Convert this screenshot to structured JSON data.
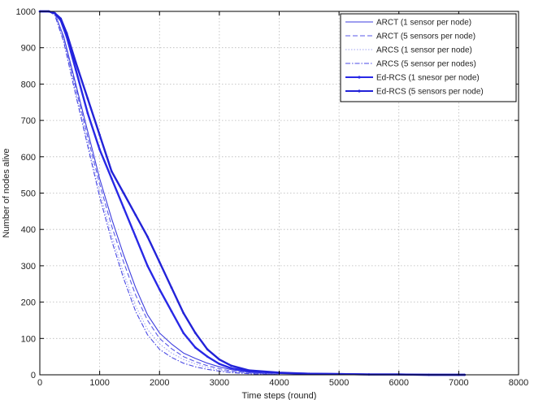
{
  "chart_data": {
    "type": "line",
    "title": "",
    "xlabel": "Time steps (round)",
    "ylabel": "Number of nodes alive",
    "xlim": [
      0,
      8000
    ],
    "ylim": [
      0,
      1000
    ],
    "xticks": [
      "0",
      "1000",
      "2000",
      "3000",
      "4000",
      "5000",
      "6000",
      "7000",
      "8000"
    ],
    "yticks": [
      "0",
      "100",
      "200",
      "300",
      "400",
      "500",
      "600",
      "700",
      "800",
      "900",
      "1000"
    ],
    "grid": true,
    "legend_position": "top-right",
    "colors": {
      "series": "#2828e6",
      "light": "#9fa3f0",
      "axis": "#000000",
      "grid": "#b8b8b8"
    },
    "series": [
      {
        "name": "ARCT (1 sensor per node)",
        "style": "solid",
        "weight": "thin",
        "color": "#3d3ddf",
        "x": [
          0,
          150,
          250,
          400,
          600,
          800,
          1000,
          1200,
          1400,
          1600,
          1800,
          2000,
          2200,
          2400,
          2600,
          2800,
          3000,
          3200,
          3500,
          3800,
          4000
        ],
        "y": [
          1000,
          1000,
          995,
          930,
          800,
          670,
          540,
          430,
          330,
          240,
          165,
          115,
          85,
          60,
          45,
          32,
          22,
          14,
          7,
          3,
          0
        ]
      },
      {
        "name": "ARCT (5 sensors per node)",
        "style": "dashed",
        "weight": "thin",
        "color": "#5a5ae8",
        "x": [
          0,
          150,
          250,
          400,
          600,
          800,
          1000,
          1200,
          1400,
          1600,
          1800,
          2000,
          2200,
          2400,
          2600,
          2800,
          3000,
          3200,
          3500,
          3800,
          4000
        ],
        "y": [
          1000,
          1000,
          995,
          925,
          790,
          655,
          525,
          410,
          310,
          220,
          150,
          100,
          72,
          50,
          36,
          25,
          17,
          10,
          5,
          2,
          0
        ]
      },
      {
        "name": "ARCS (1 sensor per node)",
        "style": "dotted",
        "weight": "thin",
        "color": "#9fa3f0",
        "x": [
          0,
          150,
          250,
          400,
          600,
          800,
          1000,
          1200,
          1400,
          1600,
          1800,
          2000,
          2200,
          2400,
          2600,
          2800,
          3000,
          3200,
          3500,
          3800,
          4000
        ],
        "y": [
          1000,
          1000,
          995,
          920,
          780,
          640,
          505,
          385,
          280,
          190,
          125,
          85,
          60,
          42,
          30,
          20,
          13,
          8,
          4,
          2,
          0
        ]
      },
      {
        "name": "ARCS (5 sensor per nodes)",
        "style": "dashdot",
        "weight": "thin",
        "color": "#4848e4",
        "x": [
          0,
          150,
          250,
          400,
          600,
          800,
          1000,
          1200,
          1400,
          1600,
          1800,
          2000,
          2200,
          2400,
          2600,
          2800,
          3000,
          3200,
          3500,
          3800,
          4000
        ],
        "y": [
          1000,
          1000,
          990,
          915,
          770,
          630,
          490,
          370,
          265,
          175,
          110,
          70,
          48,
          32,
          22,
          15,
          10,
          6,
          3,
          1,
          0
        ]
      },
      {
        "name": "Ed-RCS (1 snesor per node)",
        "style": "solid",
        "weight": "thick",
        "color": "#2828e6",
        "x": [
          0,
          150,
          250,
          350,
          450,
          600,
          800,
          1000,
          1200,
          1400,
          1600,
          1800,
          2000,
          2200,
          2400,
          2600,
          2800,
          3000,
          3200,
          3500,
          4000,
          4500,
          5000,
          5500,
          6000,
          6500,
          7000,
          7100
        ],
        "y": [
          1000,
          1000,
          995,
          975,
          930,
          840,
          720,
          620,
          540,
          460,
          380,
          300,
          235,
          175,
          115,
          75,
          50,
          30,
          18,
          10,
          5,
          3,
          2,
          1,
          1,
          0,
          0,
          0
        ]
      },
      {
        "name": "Ed-RCS (5 sensors per node)",
        "style": "solid",
        "weight": "thick",
        "color": "#2222d8",
        "x": [
          0,
          150,
          250,
          350,
          450,
          600,
          800,
          1000,
          1200,
          1400,
          1600,
          1800,
          2000,
          2200,
          2400,
          2600,
          2800,
          3000,
          3200,
          3500,
          4000,
          4500,
          5000,
          5500,
          6000,
          6500,
          7000,
          7100
        ],
        "y": [
          1000,
          1000,
          995,
          980,
          940,
          860,
          760,
          660,
          560,
          500,
          440,
          380,
          310,
          240,
          170,
          115,
          70,
          42,
          25,
          12,
          6,
          3,
          2,
          1,
          1,
          0,
          0,
          0
        ]
      }
    ]
  }
}
